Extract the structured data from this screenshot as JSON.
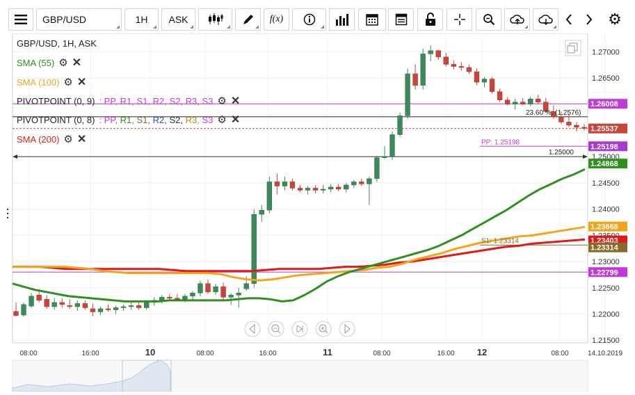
{
  "toolbar": {
    "symbol": "GBP/USD",
    "timeframe": "1H",
    "price_side": "ASK",
    "fx_label": "f(x)",
    "icons": [
      "menu-icon",
      "candles-icon",
      "pen-icon",
      "fx-icon",
      "info-icon",
      "bars-icon",
      "calendar-icon",
      "table-icon",
      "lock-icon",
      "crosshair-icon",
      "zoom-icon",
      "cloud-upload-icon",
      "cloud-download-icon",
      "chevron-left-icon",
      "chevron-right-icon",
      "gear-icon"
    ]
  },
  "legend": {
    "title": "GBP/USD, 1H, ASK",
    "sma55": "SMA (55)",
    "sma100": "SMA (100)",
    "pivot1_name": "PIVOTPOINT (0, 9)",
    "pivot1_lines": [
      ": PP,",
      "R1,",
      "S1,",
      "R2,",
      "S2,",
      "R3,",
      "S3"
    ],
    "pivot2_name": "PIVOTPOINT (0, 8)",
    "pivot2_lines": [
      ": PP,",
      "R1,",
      "S1,",
      "R2,",
      "S2,",
      "R3,",
      "S3"
    ],
    "sma200": "SMA (200)"
  },
  "colors": {
    "up": "#3c8a5a",
    "down": "#c8453a",
    "sma55": "#2f8f1f",
    "sma100": "#f2a51a",
    "sma200": "#e01a1a",
    "pivot_magenta": "#c23ad6",
    "price_label": "#c8453a"
  },
  "chart_data": {
    "type": "candlestick",
    "title": "GBP/USD, 1H, ASK",
    "ylim": [
      1.2145,
      1.2735
    ],
    "y_ticks": [
      "1.27000",
      "1.26500",
      "1.26000",
      "1.25500",
      "1.25000",
      "1.24500",
      "1.24000",
      "1.23500",
      "1.23000",
      "1.22500",
      "1.22000",
      "1.21500"
    ],
    "x_tick_labels": [
      "08:00",
      "16:00",
      "10",
      "08:00",
      "16:00",
      "11",
      "08:00",
      "16:00",
      "12",
      "08:00",
      "14.10.2019"
    ],
    "candles": [
      [
        1.2205,
        1.2222,
        1.2195,
        1.2197
      ],
      [
        1.2198,
        1.2222,
        1.2195,
        1.2218
      ],
      [
        1.2215,
        1.224,
        1.2212,
        1.2234
      ],
      [
        1.2236,
        1.2248,
        1.2222,
        1.2226
      ],
      [
        1.2228,
        1.2236,
        1.221,
        1.2214
      ],
      [
        1.2214,
        1.223,
        1.2208,
        1.2222
      ],
      [
        1.2222,
        1.223,
        1.2212,
        1.2218
      ],
      [
        1.2216,
        1.2228,
        1.221,
        1.2214
      ],
      [
        1.2214,
        1.2226,
        1.2206,
        1.222
      ],
      [
        1.222,
        1.2226,
        1.2208,
        1.2212
      ],
      [
        1.221,
        1.222,
        1.2196,
        1.2204
      ],
      [
        1.2204,
        1.2214,
        1.2198,
        1.221
      ],
      [
        1.221,
        1.2218,
        1.2204,
        1.2208
      ],
      [
        1.2208,
        1.2216,
        1.22,
        1.2212
      ],
      [
        1.2212,
        1.2218,
        1.2206,
        1.2214
      ],
      [
        1.2214,
        1.2222,
        1.2208,
        1.2216
      ],
      [
        1.2216,
        1.2222,
        1.2208,
        1.2212
      ],
      [
        1.2212,
        1.2226,
        1.2208,
        1.2222
      ],
      [
        1.2222,
        1.2232,
        1.2216,
        1.2226
      ],
      [
        1.2226,
        1.2236,
        1.222,
        1.2232
      ],
      [
        1.2232,
        1.2238,
        1.2226,
        1.223
      ],
      [
        1.223,
        1.2238,
        1.2224,
        1.2228
      ],
      [
        1.2228,
        1.2238,
        1.2222,
        1.2234
      ],
      [
        1.2234,
        1.2244,
        1.2226,
        1.224
      ],
      [
        1.224,
        1.2264,
        1.2234,
        1.2258
      ],
      [
        1.2258,
        1.2266,
        1.2238,
        1.2242
      ],
      [
        1.2242,
        1.2258,
        1.2236,
        1.2252
      ],
      [
        1.2252,
        1.226,
        1.2224,
        1.2232
      ],
      [
        1.2232,
        1.224,
        1.2218,
        1.2236
      ],
      [
        1.2236,
        1.225,
        1.2212,
        1.224
      ],
      [
        1.2248,
        1.2272,
        1.2244,
        1.2258
      ],
      [
        1.2258,
        1.24,
        1.225,
        1.239
      ],
      [
        1.239,
        1.2408,
        1.2376,
        1.2398
      ],
      [
        1.2398,
        1.2462,
        1.2392,
        1.2452
      ],
      [
        1.2452,
        1.2468,
        1.2428,
        1.2444
      ],
      [
        1.2444,
        1.2462,
        1.2436,
        1.2452
      ],
      [
        1.2452,
        1.2458,
        1.2436,
        1.244
      ],
      [
        1.244,
        1.2446,
        1.2432,
        1.2436
      ],
      [
        1.2436,
        1.2444,
        1.2428,
        1.244
      ],
      [
        1.244,
        1.2446,
        1.243,
        1.2436
      ],
      [
        1.2436,
        1.2446,
        1.243,
        1.2438
      ],
      [
        1.2438,
        1.2448,
        1.2432,
        1.2442
      ],
      [
        1.2442,
        1.2448,
        1.2434,
        1.2438
      ],
      [
        1.2438,
        1.245,
        1.2432,
        1.2446
      ],
      [
        1.2446,
        1.2456,
        1.244,
        1.2452
      ],
      [
        1.2452,
        1.2458,
        1.2444,
        1.2448
      ],
      [
        1.2448,
        1.2462,
        1.2408,
        1.2458
      ],
      [
        1.2458,
        1.2502,
        1.2452,
        1.2498
      ],
      [
        1.2498,
        1.252,
        1.2496,
        1.25
      ],
      [
        1.25,
        1.2548,
        1.2494,
        1.2542
      ],
      [
        1.2542,
        1.2584,
        1.2538,
        1.2578
      ],
      [
        1.2578,
        1.2668,
        1.2572,
        1.2658
      ],
      [
        1.2658,
        1.2676,
        1.2628,
        1.2636
      ],
      [
        1.2636,
        1.2706,
        1.2628,
        1.2696
      ],
      [
        1.2696,
        1.2712,
        1.2682,
        1.2702
      ],
      [
        1.2702,
        1.2704,
        1.2684,
        1.269
      ],
      [
        1.269,
        1.2698,
        1.2672,
        1.2676
      ],
      [
        1.2676,
        1.2684,
        1.2666,
        1.2672
      ],
      [
        1.2672,
        1.268,
        1.2664,
        1.267
      ],
      [
        1.267,
        1.2676,
        1.2658,
        1.2662
      ],
      [
        1.2662,
        1.2668,
        1.2636,
        1.2642
      ],
      [
        1.2642,
        1.2652,
        1.2632,
        1.2648
      ],
      [
        1.2648,
        1.2652,
        1.262,
        1.2624
      ],
      [
        1.2624,
        1.263,
        1.2604,
        1.2608
      ],
      [
        1.2608,
        1.2614,
        1.2598,
        1.26
      ],
      [
        1.26,
        1.261,
        1.259,
        1.2604
      ],
      [
        1.2604,
        1.2612,
        1.2598,
        1.26
      ],
      [
        1.26,
        1.2614,
        1.2596,
        1.261
      ],
      [
        1.261,
        1.2618,
        1.26,
        1.2604
      ],
      [
        1.2604,
        1.2612,
        1.2584,
        1.2586
      ],
      [
        1.2586,
        1.2598,
        1.2572,
        1.2576
      ],
      [
        1.2576,
        1.2586,
        1.2562,
        1.2566
      ],
      [
        1.2566,
        1.258,
        1.2556,
        1.256
      ],
      [
        1.256,
        1.2566,
        1.2548,
        1.2556
      ],
      [
        1.2556,
        1.2562,
        1.255,
        1.2554
      ]
    ],
    "sma55": [
      1.2258,
      1.2252,
      1.2246,
      1.2242,
      1.2238,
      1.2234,
      1.2232,
      1.223,
      1.2228,
      1.2226,
      1.2224,
      1.2224,
      1.2224,
      1.2224,
      1.2226,
      1.2226,
      1.2226,
      1.2226,
      1.2226,
      1.2226,
      1.2228,
      1.223,
      1.223,
      1.2228,
      1.2224,
      1.2226,
      1.2236,
      1.2248,
      1.2262,
      1.2272,
      1.228,
      1.2286,
      1.2292,
      1.2298,
      1.2304,
      1.231,
      1.2316,
      1.2322,
      1.233,
      1.234,
      1.235,
      1.2362,
      1.2374,
      1.2386,
      1.2398,
      1.2412,
      1.2426,
      1.2438,
      1.2448,
      1.2458,
      1.2466,
      1.2476
    ],
    "sma100": [
      1.229,
      1.229,
      1.229,
      1.229,
      1.229,
      1.2288,
      1.2286,
      1.2282,
      1.228,
      1.2278,
      1.2278,
      1.2278,
      1.2278,
      1.2278,
      1.2278,
      1.2278,
      1.2276,
      1.227,
      1.2266,
      1.2264,
      1.2266,
      1.227,
      1.2274,
      1.2276,
      1.2278,
      1.228,
      1.2282,
      1.2284,
      1.2288,
      1.229,
      1.2296,
      1.2304,
      1.231,
      1.2316,
      1.2324,
      1.233,
      1.2336,
      1.234,
      1.2344,
      1.2348,
      1.235,
      1.2354,
      1.2358,
      1.2362,
      1.2366
    ],
    "sma200": [
      1.229,
      1.229,
      1.229,
      1.2288,
      1.2286,
      1.2286,
      1.2286,
      1.2286,
      1.2286,
      1.2286,
      1.2286,
      1.2286,
      1.2284,
      1.2282,
      1.2282,
      1.2282,
      1.2282,
      1.2282,
      1.2282,
      1.2284,
      1.2286,
      1.2286,
      1.2286,
      1.2286,
      1.2288,
      1.229,
      1.229,
      1.2292,
      1.2294,
      1.2298,
      1.23,
      1.2304,
      1.2308,
      1.2312,
      1.2316,
      1.232,
      1.2324,
      1.2328,
      1.233,
      1.2334,
      1.2336,
      1.2338,
      1.234,
      1.2342
    ],
    "horizontal_lines": [
      {
        "value": 1.26008,
        "label": "1.26008",
        "color": "#c23ad6"
      },
      {
        "value": 1.2576,
        "text": "23.60 %: (1.2576)",
        "color": "#222222"
      },
      {
        "value": 1.25537,
        "label": "1.25537",
        "color": "#c8453a",
        "dashed": true
      },
      {
        "value": 1.25198,
        "label": "1.25198",
        "text": "PP: 1.25198",
        "color": "#c23ad6"
      },
      {
        "value": 1.25,
        "text": "1.25000",
        "color": "#222222"
      },
      {
        "value": 1.23314,
        "label": "1.23314",
        "text": "S1: 1.23314",
        "color": "#8a6a2a"
      },
      {
        "value": 1.22799,
        "label": "1.22799",
        "color": "#c23ad6"
      }
    ],
    "price_labels": [
      {
        "value": 1.26008,
        "text": "1.26008",
        "bg": "#c23ad6"
      },
      {
        "value": 1.25537,
        "text": "1.25537",
        "bg": "#c8453a"
      },
      {
        "value": 1.25198,
        "text": "1.25198",
        "bg": "#a83ad0"
      },
      {
        "value": 1.24868,
        "text": "1.24868",
        "bg": "#2f8f1f"
      },
      {
        "value": 1.23668,
        "text": "1.23668",
        "bg": "#f2a51a"
      },
      {
        "value": 1.23403,
        "text": "1.23403",
        "bg": "#e01a1a"
      },
      {
        "value": 1.23314,
        "text": "1.23314",
        "bg": "#8a6a2a"
      },
      {
        "value": 1.22799,
        "text": "1.22799",
        "bg": "#c23ad6"
      }
    ]
  }
}
